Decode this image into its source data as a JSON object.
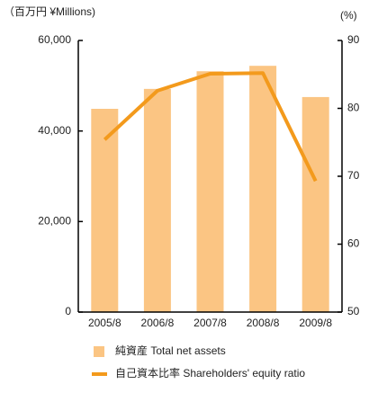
{
  "chart_data": {
    "type": "bar",
    "y_unit_label": "（百万円 ¥Millions)",
    "y2_unit_label": "(%)",
    "categories": [
      "2005/8",
      "2006/8",
      "2007/8",
      "2008/8",
      "2009/8"
    ],
    "series": [
      {
        "name": "純資産 Total net assets",
        "color": "#fbc583",
        "type": "bar",
        "values": [
          44900,
          49300,
          53200,
          54400,
          47500
        ]
      },
      {
        "name": "自己資本比率 Shareholders' equity ratio",
        "color": "#f39a1c",
        "type": "line",
        "axis": "y2",
        "values": [
          75.4,
          82.6,
          85.1,
          85.2,
          69.3
        ]
      }
    ],
    "ylim": [
      0,
      60000
    ],
    "yticks": [
      0,
      {
        "value": 20000,
        "label": "20,000"
      },
      {
        "value": 40000,
        "label": "40,000"
      },
      {
        "value": 60000,
        "label": "60,000"
      }
    ],
    "y2lim": [
      50,
      90
    ],
    "y2ticks": [
      50,
      60,
      70,
      80,
      90
    ],
    "grid": false
  }
}
